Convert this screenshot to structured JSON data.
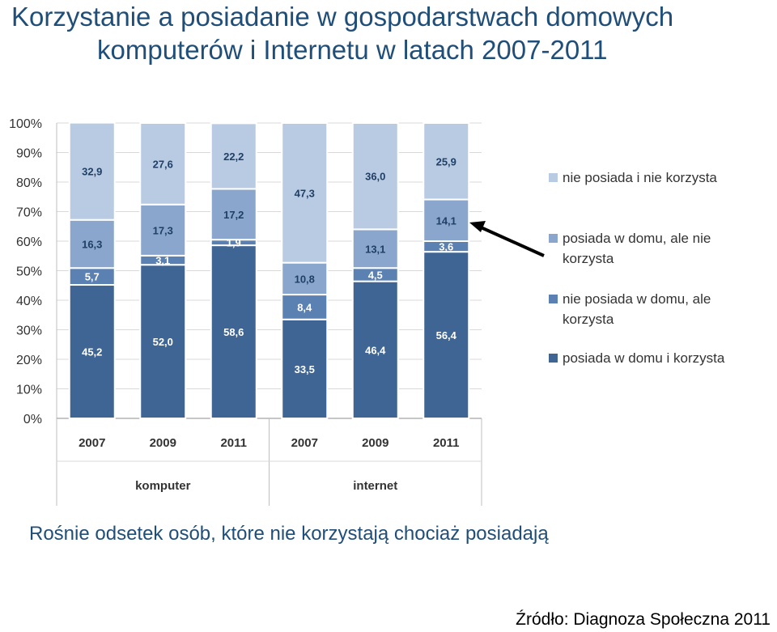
{
  "header": {
    "title_line1": "Korzystanie a posiadanie w gospodarstwach domowych",
    "title_line2": "komputerów i Internetu w latach 2007-2011"
  },
  "caption": "Rośnie odsetek osób, które nie korzystają chociaż posiadają",
  "source": "Źródło: Diagnoza Społeczna 2011",
  "colors": {
    "s1": "#3f6594",
    "s2": "#5b80b2",
    "s3": "#8aa6cc",
    "s4": "#b9cbe2"
  },
  "chart_data": {
    "type": "bar",
    "stacked": true,
    "categories": [
      "2007",
      "2009",
      "2011",
      "2007",
      "2009",
      "2011"
    ],
    "groups": [
      {
        "label": "komputer",
        "categories": [
          "2007",
          "2009",
          "2011"
        ]
      },
      {
        "label": "internet",
        "categories": [
          "2007",
          "2009",
          "2011"
        ]
      }
    ],
    "y_ticks": [
      "0%",
      "10%",
      "20%",
      "30%",
      "40%",
      "50%",
      "60%",
      "70%",
      "80%",
      "90%",
      "100%"
    ],
    "ylim": [
      0,
      100
    ],
    "series": [
      {
        "name": "posiada w domu i korzysta",
        "values": [
          45.2,
          52.0,
          58.6,
          33.5,
          46.4,
          56.4
        ],
        "labels": [
          "45,2",
          "52,0",
          "58,6",
          "33,5",
          "46,4",
          "56,4"
        ]
      },
      {
        "name": "nie posiada w domu, ale korzysta",
        "values": [
          5.7,
          3.1,
          1.9,
          8.4,
          4.5,
          3.6
        ],
        "labels": [
          "5,7",
          "3,1",
          "1,9",
          "8,4",
          "4,5",
          "3,6"
        ]
      },
      {
        "name": "posiada w domu, ale nie korzysta",
        "values": [
          16.3,
          17.3,
          17.2,
          10.8,
          13.1,
          14.1
        ],
        "labels": [
          "16,3",
          "17,3",
          "17,2",
          "10,8",
          "13,1",
          "14,1"
        ]
      },
      {
        "name": "nie posiada i nie korzysta",
        "values": [
          32.9,
          27.6,
          22.2,
          47.3,
          36.0,
          25.9
        ],
        "labels": [
          "32,9",
          "27,6",
          "22,2",
          "47,3",
          "36,0",
          "25,9"
        ]
      }
    ],
    "legend": {
      "placement": "right",
      "entries": [
        {
          "lines": [
            "nie posiada i nie korzysta"
          ]
        },
        {
          "lines": [
            "posiada w domu, ale nie",
            "korzysta"
          ]
        },
        {
          "lines": [
            "nie posiada w domu, ale",
            "korzysta"
          ]
        },
        {
          "lines": [
            "posiada w domu i korzysta"
          ]
        }
      ]
    },
    "grid": true
  }
}
